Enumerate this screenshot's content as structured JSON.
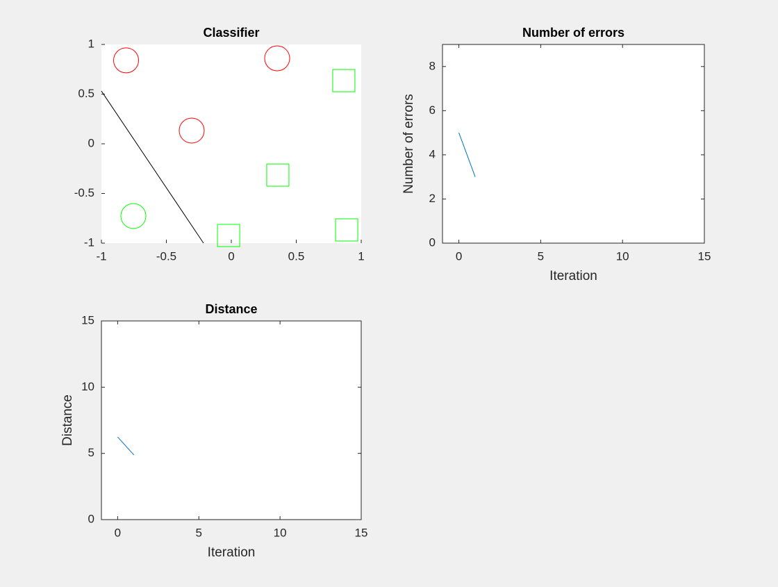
{
  "chart_data": [
    {
      "type": "scatter",
      "title": "Classifier",
      "box": false,
      "xlim": [
        -1,
        1
      ],
      "ylim": [
        -1,
        1
      ],
      "xticks": [
        -1,
        -0.5,
        0,
        0.5,
        1
      ],
      "yticks": [
        -1,
        -0.5,
        0,
        0.5,
        1
      ],
      "series": [
        {
          "color": "#ff0000",
          "marker": "circle",
          "x": [
            -0.81,
            0.353,
            -0.305
          ],
          "values": [
            0.84,
            0.86,
            0.133
          ]
        },
        {
          "color": "#00ff00",
          "marker": "circle",
          "x": [
            -0.754
          ],
          "values": [
            -0.727
          ]
        },
        {
          "color": "#00ff00",
          "marker": "square",
          "x": [
            0.866,
            0.358,
            -0.021,
            0.888
          ],
          "values": [
            0.636,
            -0.315,
            -0.923,
            -0.867
          ]
        },
        {
          "color": "#000000",
          "marker": "line",
          "x": [
            -1,
            -0.214
          ],
          "values": [
            0.531,
            -1
          ]
        }
      ]
    },
    {
      "type": "line",
      "title": "Number of errors",
      "xlabel": "Iteration",
      "ylabel": "Number of errors",
      "box": true,
      "xlim": [
        -1,
        15
      ],
      "ylim": [
        0,
        9
      ],
      "xticks": [
        0,
        5,
        10,
        15
      ],
      "yticks": [
        0,
        2,
        4,
        6,
        8
      ],
      "color": "#0072bd",
      "x": [
        0,
        1
      ],
      "values": [
        5,
        3
      ]
    },
    {
      "type": "line",
      "title": "Distance",
      "xlabel": "Iteration",
      "ylabel": "Distance",
      "box": true,
      "xlim": [
        -1,
        15
      ],
      "ylim": [
        0,
        15
      ],
      "xticks": [
        0,
        5,
        10,
        15
      ],
      "yticks": [
        0,
        5,
        10,
        15
      ],
      "color": "#0072bd",
      "x": [
        0,
        1
      ],
      "values": [
        6.24,
        4.88
      ]
    }
  ]
}
